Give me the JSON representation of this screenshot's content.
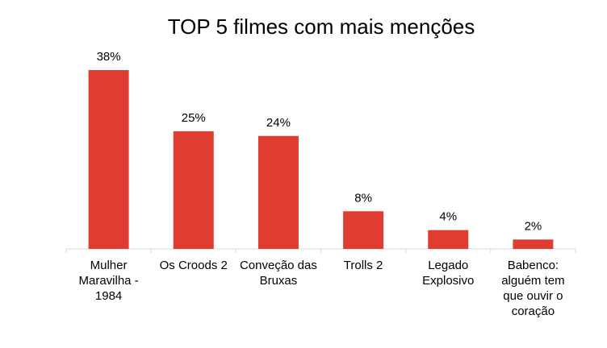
{
  "chart_data": {
    "type": "bar",
    "title": "TOP 5 filmes com mais menções",
    "categories": [
      "Mulher Maravilha - 1984",
      "Os Croods 2",
      "Conveção das Bruxas",
      "Trolls 2",
      "Legado Explosivo",
      "Babenco: alguém tem que ouvir o coração"
    ],
    "values": [
      38,
      25,
      24,
      8,
      4,
      2
    ],
    "data_labels": [
      "38%",
      "25%",
      "24%",
      "8%",
      "4%",
      "2%"
    ],
    "ylim": [
      0,
      38
    ],
    "grid": false,
    "legend": "none",
    "bar_color": "#E03C31",
    "axis_color": "#D9D9D9"
  }
}
